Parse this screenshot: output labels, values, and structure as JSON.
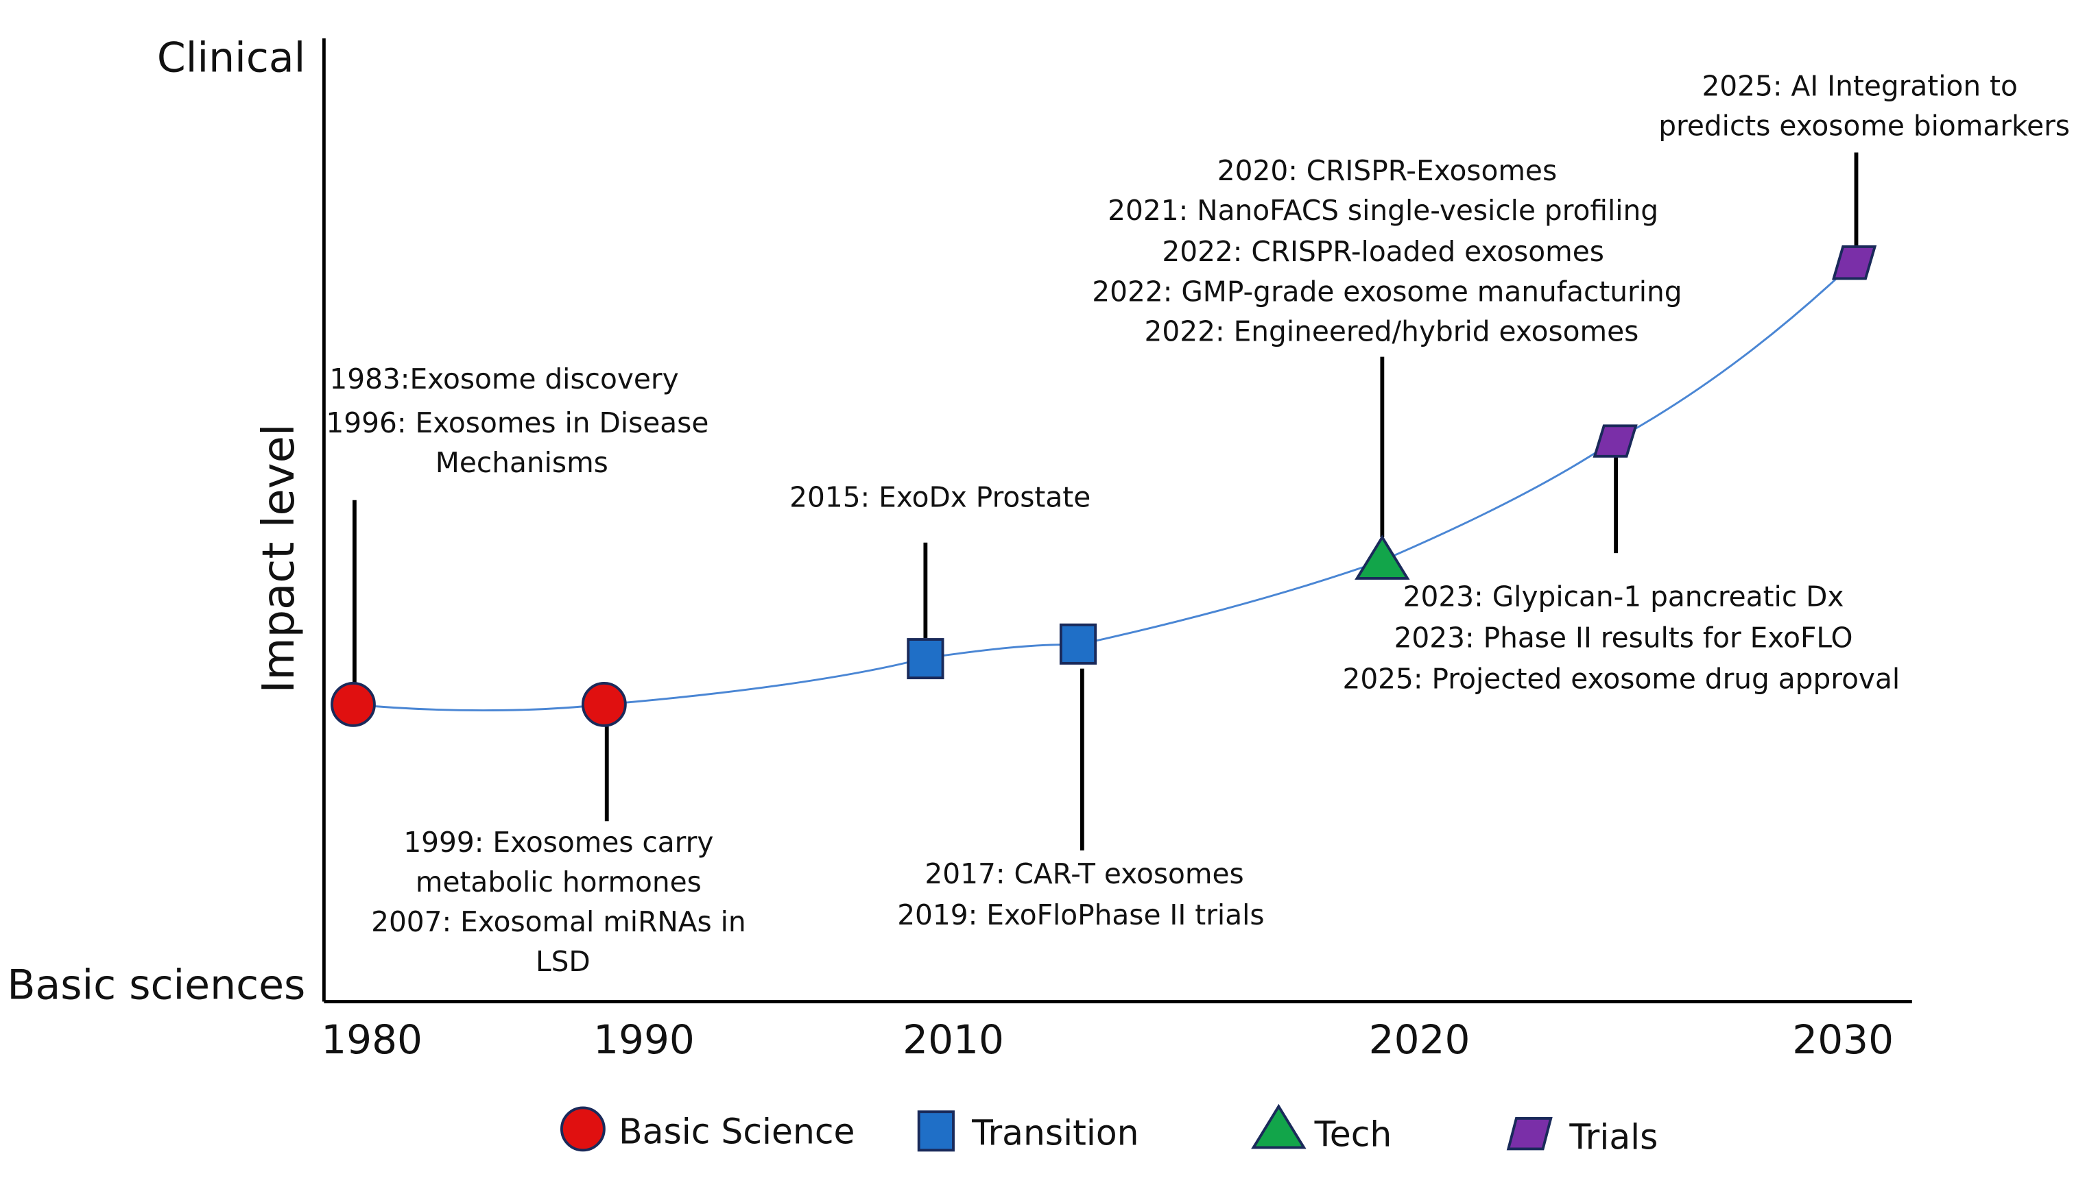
{
  "axes": {
    "y_top_label": "Clinical",
    "y_bottom_label": "Basic sciences",
    "y_title": "Impact level",
    "x_ticks": [
      "1980",
      "1990",
      "2010",
      "2020",
      "2030"
    ]
  },
  "markers": [
    {
      "id": "m1",
      "category": "basic-science"
    },
    {
      "id": "m2",
      "category": "basic-science"
    },
    {
      "id": "m3",
      "category": "transition"
    },
    {
      "id": "m4",
      "category": "transition"
    },
    {
      "id": "m5",
      "category": "tech"
    },
    {
      "id": "m6",
      "category": "trials"
    },
    {
      "id": "m7",
      "category": "trials"
    }
  ],
  "annotations": {
    "a1983": [
      "1983:Exosome discovery",
      "1996: Exosomes in Disease",
      "Mechanisms"
    ],
    "a1999": [
      "1999: Exosomes carry",
      "metabolic hormones",
      "2007: Exosomal miRNAs in",
      "LSD"
    ],
    "a2015": [
      "2015: ExoDx Prostate"
    ],
    "a2017": [
      "2017: CAR-T exosomes",
      "2019: ExoFloPhase II trials"
    ],
    "a2020": [
      "2020: CRISPR-Exosomes",
      "2021: NanoFACS single-vesicle profiling",
      "2022: CRISPR-loaded exosomes",
      "2022: GMP-grade exosome manufacturing",
      "2022: Engineered/hybrid exosomes"
    ],
    "a2023": [
      "2023: Glypican-1 pancreatic Dx",
      "2023:  Phase II results for ExoFLO",
      "2025: Projected exosome drug approval"
    ],
    "a2025": [
      "2025: AI Integration to",
      "predicts exosome biomarkers"
    ]
  },
  "legend": {
    "basic_science": "Basic Science",
    "transition": "Transition",
    "tech": "Tech",
    "trials": "Trials"
  },
  "colors": {
    "basic_science": "#e01010",
    "transition": "#1f6fc7",
    "tech": "#12a54a",
    "trials": "#7a2fa8",
    "curve": "#4a86d4",
    "marker_stroke": "#1a2a5a"
  }
}
